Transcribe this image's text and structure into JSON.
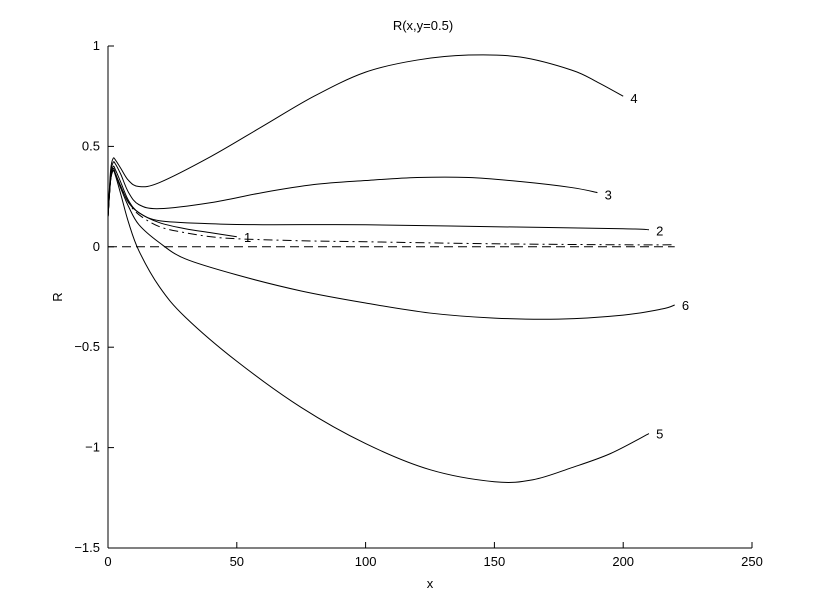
{
  "chart_data": {
    "type": "line",
    "title": "R(x,y=0.5)",
    "xlabel": "x",
    "ylabel": "R",
    "xlim": [
      0,
      250
    ],
    "ylim": [
      -1.5,
      1
    ],
    "xticks": [
      0,
      50,
      100,
      150,
      200,
      250
    ],
    "yticks": [
      -1.5,
      -1,
      -0.5,
      0,
      0.5,
      1
    ],
    "xtick_labels": [
      "0",
      "50",
      "100",
      "150",
      "200",
      "250"
    ],
    "ytick_labels": [
      "−1.5",
      "−1",
      "−0.5",
      "0",
      "0.5",
      "1"
    ],
    "grid": false,
    "series": [
      {
        "name": "1",
        "style": "solid",
        "x": [
          0,
          1,
          2,
          3,
          5,
          8,
          12,
          20,
          30,
          40,
          50
        ],
        "y": [
          0.15,
          0.33,
          0.38,
          0.36,
          0.3,
          0.22,
          0.17,
          0.12,
          0.09,
          0.07,
          0.05
        ]
      },
      {
        "name": "2",
        "style": "solid",
        "x": [
          0,
          1,
          2,
          3,
          5,
          8,
          12,
          20,
          40,
          60,
          100,
          150,
          200,
          210
        ],
        "y": [
          0.15,
          0.34,
          0.4,
          0.38,
          0.32,
          0.23,
          0.17,
          0.13,
          0.115,
          0.11,
          0.11,
          0.1,
          0.09,
          0.085
        ]
      },
      {
        "name": "3",
        "style": "solid",
        "x": [
          0,
          1,
          2,
          3,
          5,
          8,
          12,
          20,
          40,
          60,
          80,
          100,
          120,
          140,
          160,
          180,
          190
        ],
        "y": [
          0.15,
          0.36,
          0.42,
          0.41,
          0.36,
          0.27,
          0.21,
          0.19,
          0.22,
          0.27,
          0.31,
          0.33,
          0.345,
          0.345,
          0.325,
          0.295,
          0.27
        ]
      },
      {
        "name": "4",
        "style": "solid",
        "x": [
          0,
          1,
          2,
          3,
          5,
          8,
          12,
          20,
          40,
          60,
          80,
          100,
          120,
          140,
          160,
          180,
          190,
          200
        ],
        "y": [
          0.15,
          0.38,
          0.44,
          0.43,
          0.39,
          0.33,
          0.3,
          0.32,
          0.45,
          0.6,
          0.75,
          0.87,
          0.93,
          0.955,
          0.945,
          0.88,
          0.82,
          0.75
        ]
      },
      {
        "name": "5",
        "style": "solid",
        "x": [
          0,
          1,
          2,
          3,
          5,
          8,
          12,
          20,
          30,
          50,
          75,
          100,
          125,
          150,
          165,
          180,
          195,
          210
        ],
        "y": [
          0.15,
          0.33,
          0.38,
          0.35,
          0.26,
          0.12,
          -0.02,
          -0.2,
          -0.35,
          -0.57,
          -0.8,
          -0.98,
          -1.11,
          -1.17,
          -1.16,
          -1.1,
          -1.03,
          -0.93
        ]
      },
      {
        "name": "6",
        "style": "solid",
        "x": [
          0,
          1,
          2,
          3,
          5,
          8,
          12,
          20,
          30,
          50,
          75,
          100,
          125,
          150,
          175,
          200,
          215,
          220
        ],
        "y": [
          0.15,
          0.34,
          0.39,
          0.36,
          0.29,
          0.2,
          0.11,
          0.02,
          -0.06,
          -0.14,
          -0.22,
          -0.28,
          -0.33,
          -0.355,
          -0.36,
          -0.34,
          -0.31,
          -0.29
        ]
      },
      {
        "name": "",
        "style": "dashdot",
        "x": [
          0,
          1,
          2,
          3,
          5,
          8,
          12,
          20,
          30,
          40,
          50,
          75,
          100,
          150,
          200,
          220
        ],
        "y": [
          0.15,
          0.33,
          0.38,
          0.36,
          0.3,
          0.22,
          0.16,
          0.1,
          0.07,
          0.05,
          0.04,
          0.03,
          0.025,
          0.015,
          0.01,
          0.01
        ]
      },
      {
        "name": "",
        "style": "dashed",
        "x": [
          0,
          220
        ],
        "y": [
          0,
          0
        ]
      }
    ],
    "curve_labels": [
      {
        "text": "1",
        "x": 52,
        "y": 0.05
      },
      {
        "text": "2",
        "x": 212,
        "y": 0.08
      },
      {
        "text": "3",
        "x": 192,
        "y": 0.26
      },
      {
        "text": "4",
        "x": 202,
        "y": 0.74
      },
      {
        "text": "5",
        "x": 212,
        "y": -0.93
      },
      {
        "text": "6",
        "x": 222,
        "y": -0.29
      }
    ]
  }
}
